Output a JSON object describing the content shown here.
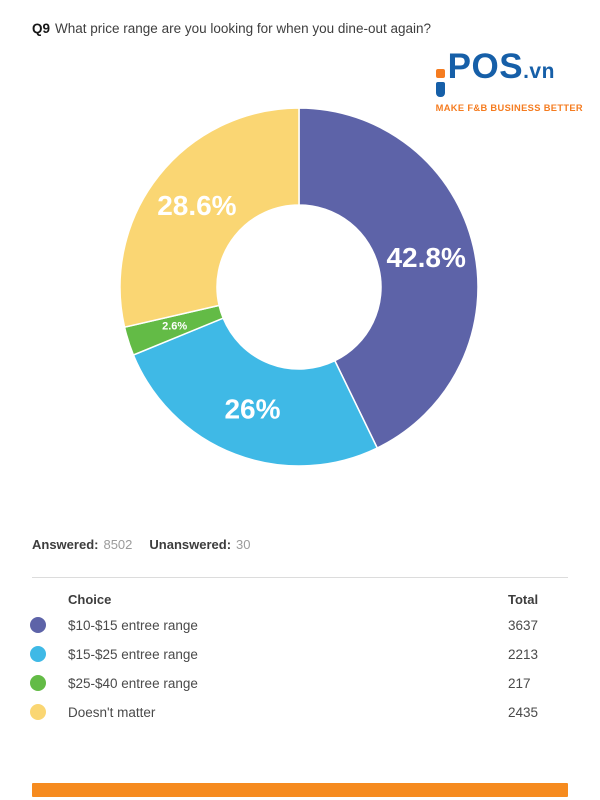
{
  "header": {
    "question_label": "Q9",
    "question_text": "What price range are you looking for when you dine-out again?"
  },
  "logo": {
    "brand": "iPOS.vn",
    "brand_pos": "POS",
    "brand_vn": ".vn",
    "tagline": "MAKE F&B BUSINESS BETTER",
    "blue": "#165FA8",
    "orange": "#F57C20"
  },
  "chart_data": {
    "type": "pie",
    "subtype": "donut",
    "title": "Q9 What price range are you looking for when you dine-out again?",
    "categories": [
      "$10-$15 entree range",
      "$15-$25 entree range",
      "$25-$40 entree range",
      "Doesn't matter"
    ],
    "values": [
      42.8,
      26,
      2.6,
      28.6
    ],
    "counts": [
      3637,
      2213,
      217,
      2435
    ],
    "slice_labels": [
      "42.8%",
      "26%",
      "2.6%",
      "28.6%"
    ],
    "colors": [
      "#5D63A8",
      "#3FB9E6",
      "#63BB46",
      "#FAD673"
    ],
    "start_angle_deg": 0,
    "direction": "clockwise",
    "inner_radius_ratio": 0.46,
    "legend": "none; labels inside slices, color-keyed table below",
    "answered": 8502,
    "unanswered": 30
  },
  "stats": {
    "answered_label": "Answered:",
    "answered_value": "8502",
    "unanswered_label": "Unanswered:",
    "unanswered_value": "30"
  },
  "table": {
    "col_choice": "Choice",
    "col_total": "Total",
    "rows": [
      {
        "label": "$10-$15 entree range",
        "total": "3637"
      },
      {
        "label": "$15-$25 entree range",
        "total": "2213"
      },
      {
        "label": "$25-$40 entree range",
        "total": "217"
      },
      {
        "label": "Doesn't matter",
        "total": "2435"
      }
    ]
  },
  "footer": {
    "bar_color": "#F68B1F"
  }
}
